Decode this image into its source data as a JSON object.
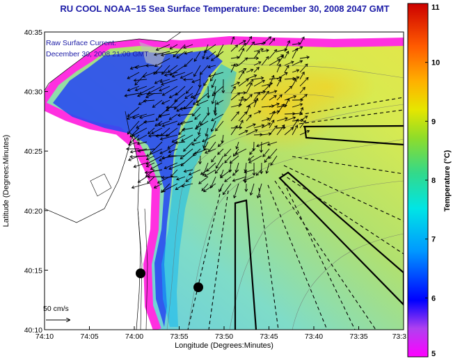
{
  "title": "RU COOL  NOAA−15  Sea Surface Temperature:  December 30, 2008 2047 GMT",
  "legend": {
    "line1": "Raw Surface Current:",
    "line2": "December 30, 2008 21:00 GMT"
  },
  "scale_label": "50 cm/s",
  "xlabel": "Longitude (Degrees:Minutes)",
  "ylabel": "Latitude (Degrees:Minutes)",
  "colorbar": {
    "label": "Temperature (°C)",
    "min": 5,
    "max": 11,
    "ticks": [
      "5",
      "6",
      "7",
      "8",
      "9",
      "10",
      "11"
    ]
  },
  "x_ticks": [
    "74:10",
    "74:05",
    "74:00",
    "73:55",
    "73:50",
    "73:45",
    "73:40",
    "73:35",
    "73:3"
  ],
  "y_ticks": [
    "40:35",
    "40:30",
    "40:25",
    "40:20",
    "40:15",
    "40:10"
  ]
}
